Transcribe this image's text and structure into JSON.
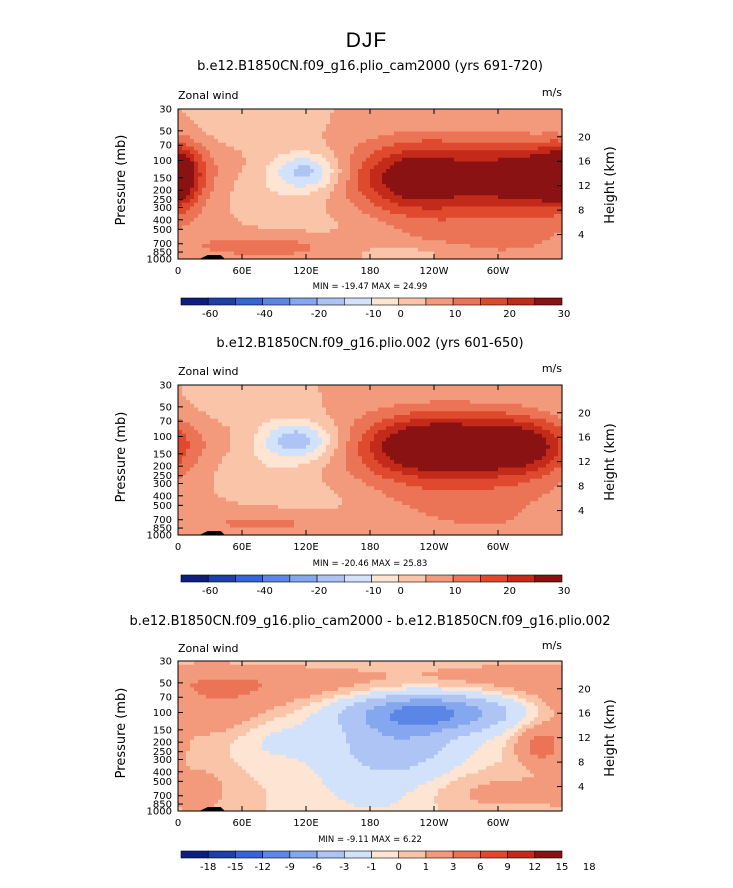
{
  "page_title": "DJF",
  "colors": {
    "blues": [
      "#0f1c80",
      "#1e3ea8",
      "#3564d6",
      "#5b86e6",
      "#84a7ef",
      "#aec4f5",
      "#d2e2fb"
    ],
    "reds": [
      "#fde4d3",
      "#f9c4a8",
      "#f39a7c",
      "#eb7356",
      "#df4a2e",
      "#c42a1a",
      "#8b1212"
    ]
  },
  "chart_data": [
    {
      "type": "heatmap",
      "title": "b.e12.B1850CN.f09_g16.plio_cam2000 (yrs 691-720)",
      "left_label": "Zonal wind",
      "units": "m/s",
      "ylabel": "Pressure (mb)",
      "ylabel_right": "Height (km)",
      "x_ticks": [
        "0",
        "60E",
        "120E",
        "180",
        "120W",
        "60W"
      ],
      "x_tick_values": [
        0,
        60,
        120,
        180,
        240,
        300
      ],
      "xlim": [
        0,
        360
      ],
      "y_ticks": [
        "30",
        "50",
        "70",
        "100",
        "150",
        "200",
        "250",
        "300",
        "400",
        "500",
        "700",
        "850",
        "1000"
      ],
      "y_tick_values": [
        30,
        50,
        70,
        100,
        150,
        200,
        250,
        300,
        400,
        500,
        700,
        850,
        1000
      ],
      "ylim": [
        1000,
        30
      ],
      "y_scale": "log",
      "height_ticks": [
        "4",
        "8",
        "12",
        "16",
        "20"
      ],
      "height_tick_values": [
        4,
        8,
        12,
        16,
        20
      ],
      "min_max_text": "MIN = -19.47   MAX =  24.99",
      "min": -19.47,
      "max": 24.99,
      "colorbar_labels": [
        "-60",
        "-40",
        "-20",
        "-10",
        "0",
        "10",
        "20",
        "30"
      ],
      "levels": [
        -70,
        -60,
        -50,
        -40,
        -30,
        -20,
        -15,
        -10,
        -5,
        0,
        5,
        10,
        15,
        20,
        25,
        30
      ],
      "features": [
        {
          "lon": 120,
          "p": 130,
          "value": -17,
          "sx": 22,
          "sy": 0.32
        },
        {
          "lon": 80,
          "p": 230,
          "value": -4,
          "sx": 55,
          "sy": 0.5
        },
        {
          "lon": 45,
          "p": 55,
          "value": -3,
          "sx": 60,
          "sy": 0.35
        },
        {
          "lon": 150,
          "p": 500,
          "value": -3,
          "sx": 40,
          "sy": 0.4
        },
        {
          "lon": 215,
          "p": 880,
          "value": -5,
          "sx": 35,
          "sy": 0.15
        },
        {
          "lon": 0,
          "p": 140,
          "value": 17,
          "sx": 14,
          "sy": 0.5
        },
        {
          "lon": 225,
          "p": 150,
          "value": 22,
          "sx": 40,
          "sy": 0.5
        },
        {
          "lon": 330,
          "p": 150,
          "value": 22,
          "sx": 35,
          "sy": 0.5
        },
        {
          "lon": 265,
          "p": 280,
          "value": 8,
          "sx": 90,
          "sy": 0.8
        },
        {
          "lon": 280,
          "p": 75,
          "value": 5,
          "sx": 80,
          "sy": 0.4
        },
        {
          "lon": 90,
          "p": 750,
          "value": 7,
          "sx": 50,
          "sy": 0.22
        },
        {
          "lon": 300,
          "p": 850,
          "value": 2,
          "sx": 60,
          "sy": 0.3
        }
      ]
    },
    {
      "type": "heatmap",
      "title": "b.e12.B1850CN.f09_g16.plio.002 (yrs 601-650)",
      "left_label": "Zonal wind",
      "units": "m/s",
      "ylabel": "Pressure (mb)",
      "ylabel_right": "Height (km)",
      "x_ticks": [
        "0",
        "60E",
        "120E",
        "180",
        "120W",
        "60W"
      ],
      "x_tick_values": [
        0,
        60,
        120,
        180,
        240,
        300
      ],
      "xlim": [
        0,
        360
      ],
      "y_ticks": [
        "30",
        "50",
        "70",
        "100",
        "150",
        "200",
        "250",
        "300",
        "400",
        "500",
        "700",
        "850",
        "1000"
      ],
      "y_tick_values": [
        30,
        50,
        70,
        100,
        150,
        200,
        250,
        300,
        400,
        500,
        700,
        850,
        1000
      ],
      "ylim": [
        1000,
        30
      ],
      "y_scale": "log",
      "height_ticks": [
        "4",
        "8",
        "12",
        "16",
        "20"
      ],
      "height_tick_values": [
        4,
        8,
        12,
        16,
        20
      ],
      "min_max_text": "MIN = -20.46   MAX =  25.83",
      "min": -20.46,
      "max": 25.83,
      "colorbar_labels": [
        "-60",
        "-40",
        "-20",
        "-10",
        "0",
        "10",
        "20",
        "30"
      ],
      "levels": [
        -70,
        -60,
        -50,
        -40,
        -30,
        -20,
        -15,
        -10,
        -5,
        0,
        5,
        10,
        15,
        20,
        25,
        30
      ],
      "features": [
        {
          "lon": 112,
          "p": 110,
          "value": -19,
          "sx": 24,
          "sy": 0.32
        },
        {
          "lon": 75,
          "p": 240,
          "value": -5,
          "sx": 55,
          "sy": 0.5
        },
        {
          "lon": 45,
          "p": 55,
          "value": -3,
          "sx": 60,
          "sy": 0.35
        },
        {
          "lon": 150,
          "p": 500,
          "value": -3,
          "sx": 40,
          "sy": 0.4
        },
        {
          "lon": 235,
          "p": 125,
          "value": 25,
          "sx": 42,
          "sy": 0.45
        },
        {
          "lon": 320,
          "p": 125,
          "value": 21,
          "sx": 35,
          "sy": 0.45
        },
        {
          "lon": 260,
          "p": 250,
          "value": 9,
          "sx": 90,
          "sy": 0.8
        },
        {
          "lon": 270,
          "p": 65,
          "value": 4,
          "sx": 80,
          "sy": 0.4
        },
        {
          "lon": 90,
          "p": 750,
          "value": 6,
          "sx": 50,
          "sy": 0.22
        },
        {
          "lon": 300,
          "p": 850,
          "value": 2,
          "sx": 60,
          "sy": 0.3
        }
      ]
    },
    {
      "type": "heatmap",
      "title": "b.e12.B1850CN.f09_g16.plio_cam2000 - b.e12.B1850CN.f09_g16.plio.002",
      "left_label": "Zonal wind",
      "units": "m/s",
      "ylabel": "Pressure (mb)",
      "ylabel_right": "Height (km)",
      "x_ticks": [
        "0",
        "60E",
        "120E",
        "180",
        "120W",
        "60W"
      ],
      "x_tick_values": [
        0,
        60,
        120,
        180,
        240,
        300
      ],
      "xlim": [
        0,
        360
      ],
      "y_ticks": [
        "30",
        "50",
        "70",
        "100",
        "150",
        "200",
        "250",
        "300",
        "400",
        "500",
        "700",
        "850",
        "1000"
      ],
      "y_tick_values": [
        30,
        50,
        70,
        100,
        150,
        200,
        250,
        300,
        400,
        500,
        700,
        850,
        1000
      ],
      "ylim": [
        1000,
        30
      ],
      "y_scale": "log",
      "height_ticks": [
        "4",
        "8",
        "12",
        "16",
        "20"
      ],
      "height_tick_values": [
        4,
        8,
        12,
        16,
        20
      ],
      "min_max_text": "MIN =  -9.11   MAX =   6.22",
      "min": -9.11,
      "max": 6.22,
      "colorbar_labels": [
        "-18",
        "-15",
        "-12",
        "-9",
        "-6",
        "-3",
        "-1",
        "0",
        "1",
        "3",
        "6",
        "9",
        "12",
        "15",
        "18"
      ],
      "levels": [
        -21,
        -18,
        -15,
        -12,
        -9,
        -6,
        -3,
        -1,
        0,
        1,
        3,
        6,
        9,
        12,
        15,
        18
      ],
      "features": [
        {
          "lon": 240,
          "p": 100,
          "value": -8.5,
          "sx": 50,
          "sy": 0.3
        },
        {
          "lon": 210,
          "p": 170,
          "value": -4,
          "sx": 40,
          "sy": 0.55
        },
        {
          "lon": 190,
          "p": 400,
          "value": -2,
          "sx": 45,
          "sy": 0.8
        },
        {
          "lon": 90,
          "p": 180,
          "value": -1.5,
          "sx": 30,
          "sy": 0.4
        },
        {
          "lon": 35,
          "p": 90,
          "value": 2.5,
          "sx": 45,
          "sy": 0.5
        },
        {
          "lon": 100,
          "p": 50,
          "value": 2,
          "sx": 70,
          "sy": 0.3
        },
        {
          "lon": 300,
          "p": 45,
          "value": 1.5,
          "sx": 80,
          "sy": 0.3
        },
        {
          "lon": 340,
          "p": 220,
          "value": 4,
          "sx": 15,
          "sy": 0.3
        },
        {
          "lon": 300,
          "p": 650,
          "value": 1.5,
          "sx": 60,
          "sy": 0.35
        },
        {
          "lon": 20,
          "p": 600,
          "value": 1.2,
          "sx": 20,
          "sy": 0.5
        }
      ]
    }
  ]
}
